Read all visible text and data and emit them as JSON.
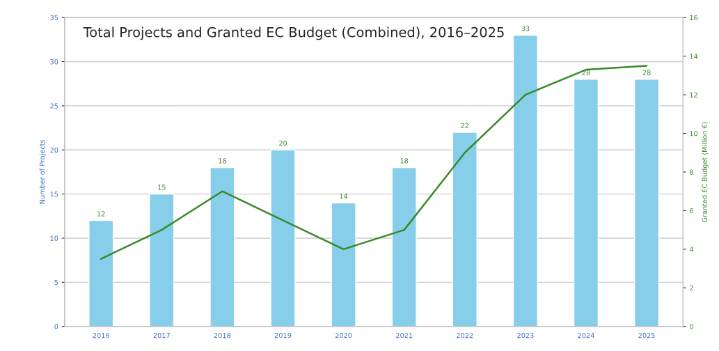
{
  "chart_data": {
    "type": "bar",
    "title": "Total Projects and Granted EC Budget (Combined), 2016–2025",
    "ylabel": "Number of Projects",
    "y2label": "Granted EC Budget (Million €)",
    "categories": [
      "2016",
      "2017",
      "2018",
      "2019",
      "2020",
      "2021",
      "2022",
      "2023",
      "2024",
      "2025"
    ],
    "series": [
      {
        "color": "#87ceeb",
        "values": [
          12,
          15,
          18,
          20,
          14,
          18,
          22,
          33,
          28,
          28
        ],
        "data_labels": true
      },
      {
        "type": "line",
        "axis": "y2",
        "color": "#3a8a2a",
        "values": [
          3.5,
          5.0,
          7.0,
          5.5,
          4.0,
          5.0,
          9.0,
          12.0,
          13.3,
          13.5
        ]
      }
    ],
    "ylim": [
      0,
      35
    ],
    "yticks": [
      0,
      5,
      10,
      15,
      20,
      25,
      30,
      35
    ],
    "y2lim": [
      0,
      16
    ],
    "y2ticks": [
      0,
      2,
      4,
      6,
      8,
      10,
      12,
      14,
      16
    ],
    "grid": "y",
    "legend": false
  }
}
